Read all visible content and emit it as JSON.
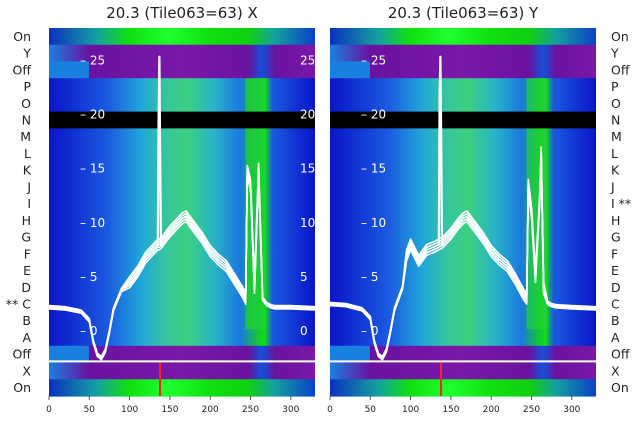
{
  "chart_data": [
    {
      "type": "heatmap",
      "title": "20.3 (Tile063=63) X",
      "x_ticks": [
        0,
        50,
        100,
        150,
        200,
        250,
        300
      ],
      "xlim": [
        0,
        330
      ],
      "y_ticks": [
        0,
        5,
        10,
        15,
        20,
        25
      ],
      "ylim": [
        -6,
        28
      ],
      "row_labels": [
        "On",
        "X",
        "Off",
        "A",
        "B",
        "** C",
        "D",
        "E",
        "F",
        "G",
        "H",
        "I",
        "J",
        "K",
        "L",
        "M",
        "N",
        "O",
        "P",
        "Off",
        "Y",
        "On"
      ],
      "colormap": [
        "#5a0a9a",
        "#8a1aa8",
        "#0a14c8",
        "#1a6ee0",
        "#20b4d0",
        "#30c890",
        "#10e010",
        "#20ff30"
      ],
      "overlay_series": [
        {
          "x": [
            0,
            20,
            40,
            50,
            55,
            60,
            65,
            70,
            75,
            80,
            90,
            100,
            110,
            120,
            130,
            135,
            137,
            140,
            150,
            160,
            165,
            170,
            180,
            190,
            200,
            210,
            220,
            230,
            240,
            244,
            246,
            250,
            255,
            260,
            262,
            265,
            270,
            275,
            280,
            300,
            330
          ],
          "y": [
            2.2,
            2.1,
            1.8,
            1.0,
            -1.0,
            -2.2,
            -2.5,
            -1.8,
            0.0,
            2.0,
            3.8,
            4.5,
            5.5,
            6.8,
            7.6,
            8.0,
            8.0,
            8.2,
            9.2,
            10.0,
            10.4,
            10.6,
            9.6,
            8.6,
            7.4,
            6.6,
            6.0,
            4.8,
            3.6,
            3.0,
            14.8,
            13.5,
            4.0,
            15.0,
            10.0,
            3.0,
            2.5,
            2.3,
            2.2,
            2.2,
            2.1
          ]
        },
        {
          "x": [
            135,
            136,
            137,
            138,
            139
          ],
          "y": [
            8,
            20,
            25.5,
            16,
            8
          ]
        }
      ],
      "hline_y": -2.8
    },
    {
      "type": "heatmap",
      "title": "20.3 (Tile063=63) Y",
      "x_ticks": [
        0,
        50,
        100,
        150,
        200,
        250,
        300
      ],
      "xlim": [
        0,
        330
      ],
      "y_ticks": [
        0,
        5,
        10,
        15,
        20,
        25
      ],
      "ylim": [
        -6,
        28
      ],
      "row_labels": [
        "On",
        "X",
        "Off",
        "A",
        "B",
        "C",
        "D",
        "E",
        "F",
        "G",
        "H",
        "I **",
        "J",
        "K",
        "L",
        "M",
        "N",
        "O",
        "P",
        "Off",
        "Y",
        "On"
      ],
      "colormap": [
        "#5a0a9a",
        "#8a1aa8",
        "#0a14c8",
        "#1a6ee0",
        "#20b4d0",
        "#30c890",
        "#10e010",
        "#20ff30"
      ],
      "overlay_series": [
        {
          "x": [
            0,
            20,
            40,
            50,
            55,
            60,
            65,
            70,
            75,
            80,
            90,
            95,
            100,
            110,
            120,
            130,
            140,
            150,
            160,
            165,
            170,
            180,
            190,
            200,
            210,
            220,
            230,
            240,
            244,
            246,
            250,
            255,
            260,
            262,
            265,
            270,
            275,
            280,
            300,
            330
          ],
          "y": [
            2.5,
            2.4,
            2.0,
            1.2,
            -1.0,
            -2.2,
            -2.5,
            -1.8,
            0.0,
            2.0,
            4.0,
            7.0,
            8.0,
            6.5,
            7.5,
            7.8,
            8.2,
            9.0,
            10.0,
            10.4,
            10.6,
            9.6,
            8.6,
            7.4,
            6.6,
            6.0,
            4.8,
            3.4,
            3.0,
            13.5,
            11.0,
            5.0,
            12.0,
            16.5,
            4.0,
            2.6,
            2.4,
            2.3,
            2.2,
            2.1
          ]
        },
        {
          "x": [
            135,
            136,
            137,
            138,
            139
          ],
          "y": [
            8,
            22,
            25.5,
            18,
            8
          ]
        }
      ],
      "hline_y": -2.8
    }
  ]
}
